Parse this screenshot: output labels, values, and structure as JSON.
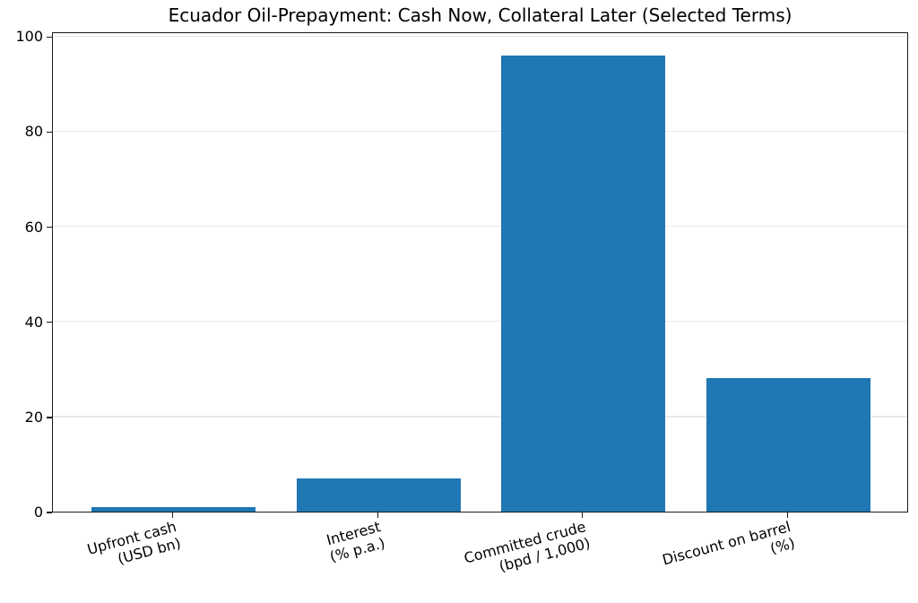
{
  "chart_data": {
    "type": "bar",
    "title": "Ecuador Oil-Prepayment: Cash Now, Collateral Later (Selected Terms)",
    "categories": [
      "Upfront cash\n(USD bn)",
      "Interest\n(% p.a.)",
      "Committed crude\n(bpd / 1,000)",
      "Discount on barrel\n(%)"
    ],
    "values": [
      1,
      7,
      96,
      28
    ],
    "xlabel": "",
    "ylabel": "",
    "yticks": [
      0,
      20,
      40,
      60,
      80,
      100
    ],
    "ylim": [
      0,
      101
    ],
    "grid": "horizontal",
    "legend": "none",
    "tick_label_rotation_deg": 15,
    "colors": {
      "bar": "#1f77b4",
      "grid": "#eaeaea",
      "spine": "#1a1a1a",
      "text": "#000000",
      "background": "#ffffff"
    }
  }
}
